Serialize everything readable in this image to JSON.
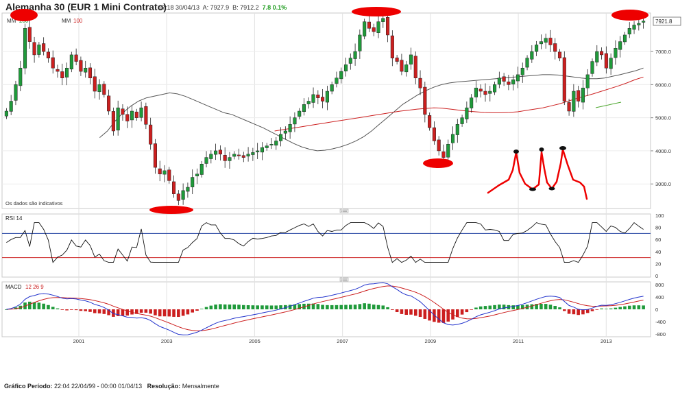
{
  "header": {
    "title": "Alemanha 30 (EUR 1 Mini Contrato)",
    "time": "17:18 30/04/13",
    "ask": "A: 7927.9",
    "bid": "B: 7912.2",
    "change": "7.8 0.1%"
  },
  "footer": {
    "period_label": "Gráfico Período:",
    "period_value": "22:04 22/04/99 - 00:00 01/04/13",
    "resolution_label": "Resolução:",
    "resolution_value": "Mensalmente"
  },
  "colors": {
    "bull": "#1f9a3a",
    "bear": "#cc1f1f",
    "ma200": "#555555",
    "ma100": "#cc1f1f",
    "rsi": "#111111",
    "rsi_upper": "#1f3fa0",
    "rsi_lower": "#cc1f1f",
    "macd": "#2233cc",
    "signal": "#cc1f1f",
    "hist_pos": "#1f9a3a",
    "hist_neg": "#cc1f1f",
    "annotation": "#ee0000"
  },
  "chart_data": [
    {
      "type": "candlestick",
      "legend": [
        {
          "name": "MM",
          "value": "200"
        },
        {
          "name": "MM",
          "value": "100"
        }
      ],
      "note": "Os dados são indicativos",
      "last_price_label": "7921.8",
      "ylim": [
        2300,
        8100
      ],
      "y_ticks": [
        "3000.0",
        "4000.0",
        "5000.0",
        "6000.0",
        "7000.0"
      ],
      "y_tick_values": [
        3000,
        4000,
        5000,
        6000,
        7000
      ],
      "x_ticks": [
        "2001",
        "2003",
        "2005",
        "2007",
        "2009",
        "2011",
        "2013"
      ],
      "x_tick_values": [
        2001,
        2003,
        2005,
        2007,
        2009,
        2011,
        2013
      ],
      "xlim": [
        1999.3,
        2013.9
      ],
      "closes": [
        5200,
        5500,
        6000,
        6500,
        7700,
        7300,
        6900,
        7200,
        7000,
        6800,
        6500,
        6400,
        6200,
        6500,
        6900,
        6700,
        6400,
        6500,
        6200,
        5800,
        6000,
        5700,
        5200,
        4600,
        5300,
        5100,
        4900,
        5200,
        5000,
        5300,
        4800,
        4200,
        3500,
        3300,
        3400,
        3100,
        2700,
        2500,
        2800,
        2900,
        3200,
        3300,
        3600,
        3800,
        3900,
        4000,
        3900,
        3700,
        3800,
        3900,
        3850,
        3800,
        3900,
        3950,
        4000,
        4100,
        4150,
        4200,
        4300,
        4500,
        4600,
        4800,
        5000,
        5200,
        5400,
        5500,
        5700,
        5600,
        5500,
        5800,
        6000,
        6200,
        6400,
        6600,
        6800,
        7000,
        7500,
        7900,
        7700,
        7600,
        7900,
        8000,
        7500,
        6800,
        6700,
        6400,
        6600,
        6900,
        6200,
        5900,
        5100,
        4700,
        4300,
        4000,
        3800,
        4200,
        4500,
        4800,
        5000,
        5300,
        5600,
        5900,
        5800,
        5700,
        5800,
        6000,
        6200,
        6100,
        6000,
        6150,
        6300,
        6500,
        6800,
        7000,
        7200,
        7300,
        7400,
        7200,
        7000,
        6800,
        5500,
        5200,
        5800,
        5500,
        5900,
        6300,
        6700,
        7000,
        6900,
        6500,
        6800,
        7100,
        7300,
        7500,
        7700,
        7800,
        7850,
        7920
      ],
      "ma200": [
        null,
        null,
        null,
        null,
        null,
        null,
        null,
        null,
        null,
        null,
        null,
        null,
        4400,
        4600,
        4900,
        5150,
        5350,
        5500,
        5600,
        5650,
        5700,
        5750,
        5720,
        5650,
        5550,
        5450,
        5350,
        5250,
        5150,
        5100,
        5000,
        4900,
        4800,
        4700,
        4580,
        4460,
        4340,
        4220,
        4120,
        4050,
        4000,
        4020,
        4060,
        4120,
        4200,
        4300,
        4430,
        4600,
        4800,
        5000,
        5200,
        5400,
        5550,
        5700,
        5820,
        5920,
        6000,
        6050,
        6080,
        6100,
        6120,
        6140,
        6160,
        6180,
        6200,
        6220,
        6240,
        6260,
        6280,
        6300,
        6300,
        6290,
        6260,
        6230,
        6200,
        6180,
        6180,
        6200,
        6250,
        6300,
        6360,
        6420,
        6500
      ],
      "ma100": [
        null,
        null,
        null,
        null,
        null,
        null,
        null,
        null,
        null,
        null,
        null,
        null,
        null,
        null,
        null,
        null,
        null,
        null,
        null,
        null,
        null,
        null,
        null,
        null,
        null,
        null,
        null,
        null,
        null,
        null,
        null,
        null,
        4600,
        4640,
        4680,
        4720,
        4760,
        4800,
        4840,
        4880,
        4920,
        4960,
        5000,
        5040,
        5080,
        5120,
        5160,
        5200,
        5230,
        5260,
        5280,
        5300,
        5290,
        5260,
        5230,
        5200,
        5180,
        5160,
        5150,
        5150,
        5160,
        5180,
        5220,
        5260,
        5300,
        5360,
        5420,
        5500,
        5580,
        5650,
        5720,
        5800,
        5880,
        5960,
        6050,
        6150,
        6230
      ],
      "ma100_start": 55,
      "ma200_start": 58,
      "rsi": {
        "label": "RSI 14",
        "ylim": [
          0,
          100
        ],
        "y_ticks": [
          "0",
          "20",
          "40",
          "60",
          "80",
          "100"
        ],
        "upper": 70,
        "lower": 30
      },
      "macd": {
        "label": "MACD",
        "params": "12 26 9",
        "ylim": [
          -850,
          850
        ],
        "y_ticks": [
          "-800",
          "-400",
          "0",
          "400",
          "800"
        ],
        "y_tick_values": [
          -800,
          -400,
          0,
          400,
          800
        ]
      }
    }
  ]
}
